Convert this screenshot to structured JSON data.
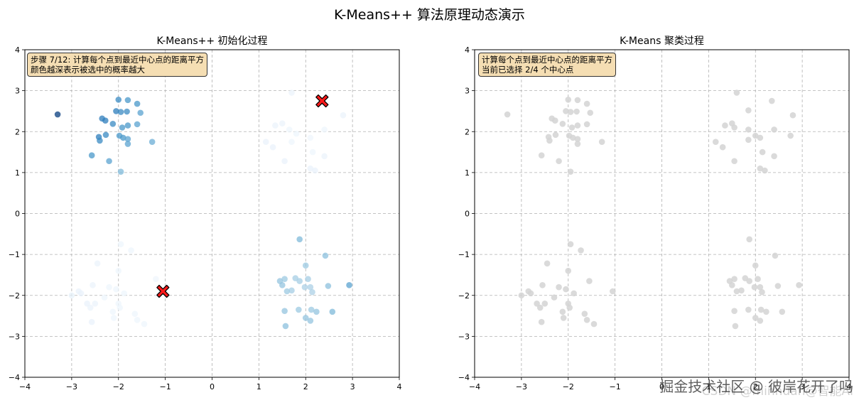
{
  "figure": {
    "suptitle": "K-Means++ 算法原理动态演示",
    "watermark": "掘金技术社区 @ 彼岸花开了吗",
    "watermark_faint": "CSDN @minhuan@智能AI"
  },
  "chart_data": [
    {
      "type": "scatter",
      "title": "K-Means++ 初始化过程",
      "xlim": [
        -4,
        4
      ],
      "ylim": [
        -4,
        4
      ],
      "xticks": [
        "−4",
        "−3",
        "−2",
        "−1",
        "0",
        "1",
        "2",
        "3",
        "4"
      ],
      "yticks": [
        "−4",
        "−3",
        "−2",
        "−1",
        "0",
        "1",
        "2",
        "3",
        "4"
      ],
      "grid": true,
      "annotation": [
        "步骤 7/12: 计算每个点到最近中心点的距离平方",
        "颜色越深表示被选中的概率越大"
      ],
      "points": [
        {
          "x": -3.3,
          "y": 2.42,
          "w": 0.95
        },
        {
          "x": -2.0,
          "y": 2.78,
          "w": 0.65
        },
        {
          "x": -1.8,
          "y": 2.77,
          "w": 0.6
        },
        {
          "x": -1.6,
          "y": 2.68,
          "w": 0.6
        },
        {
          "x": -2.35,
          "y": 2.32,
          "w": 0.7
        },
        {
          "x": -2.28,
          "y": 2.27,
          "w": 0.7
        },
        {
          "x": -2.05,
          "y": 2.5,
          "w": 0.7
        },
        {
          "x": -1.95,
          "y": 2.48,
          "w": 0.65
        },
        {
          "x": -1.82,
          "y": 2.49,
          "w": 0.65
        },
        {
          "x": -1.53,
          "y": 2.46,
          "w": 0.55
        },
        {
          "x": -2.12,
          "y": 2.19,
          "w": 0.65
        },
        {
          "x": -1.92,
          "y": 2.1,
          "w": 0.6
        },
        {
          "x": -1.8,
          "y": 2.15,
          "w": 0.6
        },
        {
          "x": -1.6,
          "y": 2.18,
          "w": 0.55
        },
        {
          "x": -2.42,
          "y": 1.87,
          "w": 0.7
        },
        {
          "x": -2.27,
          "y": 1.92,
          "w": 0.65
        },
        {
          "x": -2.4,
          "y": 1.78,
          "w": 0.65
        },
        {
          "x": -1.98,
          "y": 1.9,
          "w": 0.6
        },
        {
          "x": -1.9,
          "y": 1.85,
          "w": 0.6
        },
        {
          "x": -1.8,
          "y": 1.82,
          "w": 0.55
        },
        {
          "x": -1.8,
          "y": 1.7,
          "w": 0.55
        },
        {
          "x": -1.28,
          "y": 1.75,
          "w": 0.5
        },
        {
          "x": -2.57,
          "y": 1.42,
          "w": 0.6
        },
        {
          "x": -2.2,
          "y": 1.28,
          "w": 0.55
        },
        {
          "x": -1.95,
          "y": 1.02,
          "w": 0.45
        },
        {
          "x": 2.35,
          "y": 2.75,
          "w": 0.0
        },
        {
          "x": 2.8,
          "y": 2.4,
          "w": 0.06
        },
        {
          "x": 1.5,
          "y": 2.2,
          "w": 0.06
        },
        {
          "x": 1.35,
          "y": 2.15,
          "w": 0.06
        },
        {
          "x": 1.65,
          "y": 2.05,
          "w": 0.05
        },
        {
          "x": 1.8,
          "y": 1.95,
          "w": 0.05
        },
        {
          "x": 2.1,
          "y": 1.85,
          "w": 0.04
        },
        {
          "x": 2.4,
          "y": 2.05,
          "w": 0.05
        },
        {
          "x": 1.15,
          "y": 1.75,
          "w": 0.07
        },
        {
          "x": 1.3,
          "y": 1.62,
          "w": 0.07
        },
        {
          "x": 1.7,
          "y": 1.75,
          "w": 0.05
        },
        {
          "x": 2.15,
          "y": 1.5,
          "w": 0.05
        },
        {
          "x": 2.4,
          "y": 1.4,
          "w": 0.06
        },
        {
          "x": 1.55,
          "y": 1.28,
          "w": 0.07
        },
        {
          "x": 2.1,
          "y": 1.1,
          "w": 0.07
        },
        {
          "x": 2.2,
          "y": 1.05,
          "w": 0.07
        },
        {
          "x": 1.7,
          "y": 2.95,
          "w": 0.06
        },
        {
          "x": 1.87,
          "y": -0.63,
          "w": 0.45
        },
        {
          "x": 2.42,
          "y": -1.03,
          "w": 0.42
        },
        {
          "x": 2.0,
          "y": -1.27,
          "w": 0.38
        },
        {
          "x": 1.45,
          "y": -1.65,
          "w": 0.4
        },
        {
          "x": 1.55,
          "y": -1.6,
          "w": 0.38
        },
        {
          "x": 1.5,
          "y": -1.75,
          "w": 0.4
        },
        {
          "x": 1.78,
          "y": -1.58,
          "w": 0.35
        },
        {
          "x": 1.87,
          "y": -1.65,
          "w": 0.35
        },
        {
          "x": 2.05,
          "y": -1.6,
          "w": 0.35
        },
        {
          "x": 2.48,
          "y": -1.77,
          "w": 0.42
        },
        {
          "x": 2.93,
          "y": -1.75,
          "w": 0.55
        },
        {
          "x": 1.6,
          "y": -1.9,
          "w": 0.38
        },
        {
          "x": 1.7,
          "y": -1.88,
          "w": 0.35
        },
        {
          "x": 1.98,
          "y": -1.8,
          "w": 0.33
        },
        {
          "x": 2.1,
          "y": -1.8,
          "w": 0.33
        },
        {
          "x": 2.14,
          "y": -1.92,
          "w": 0.33
        },
        {
          "x": 1.55,
          "y": -2.38,
          "w": 0.4
        },
        {
          "x": 1.85,
          "y": -2.35,
          "w": 0.38
        },
        {
          "x": 2.12,
          "y": -2.35,
          "w": 0.38
        },
        {
          "x": 2.23,
          "y": -2.4,
          "w": 0.4
        },
        {
          "x": 2.57,
          "y": -2.4,
          "w": 0.45
        },
        {
          "x": 2.0,
          "y": -2.55,
          "w": 0.4
        },
        {
          "x": 2.1,
          "y": -2.62,
          "w": 0.4
        },
        {
          "x": 1.57,
          "y": -2.75,
          "w": 0.42
        },
        {
          "x": -1.95,
          "y": -0.75,
          "w": 0.05
        },
        {
          "x": -1.73,
          "y": -0.9,
          "w": 0.05
        },
        {
          "x": -2.45,
          "y": -1.22,
          "w": 0.06
        },
        {
          "x": -2.0,
          "y": -1.4,
          "w": 0.05
        },
        {
          "x": -1.2,
          "y": -1.6,
          "w": 0.04
        },
        {
          "x": -2.55,
          "y": -1.75,
          "w": 0.06
        },
        {
          "x": -2.05,
          "y": -1.85,
          "w": 0.05
        },
        {
          "x": -1.88,
          "y": -1.95,
          "w": 0.05
        },
        {
          "x": -2.2,
          "y": -1.8,
          "w": 0.05
        },
        {
          "x": -2.85,
          "y": -1.9,
          "w": 0.07
        },
        {
          "x": -2.8,
          "y": -1.95,
          "w": 0.07
        },
        {
          "x": -3.0,
          "y": -2.0,
          "w": 0.08
        },
        {
          "x": -2.67,
          "y": -2.2,
          "w": 0.07
        },
        {
          "x": -2.5,
          "y": -2.2,
          "w": 0.06
        },
        {
          "x": -2.3,
          "y": -2.05,
          "w": 0.05
        },
        {
          "x": -2.0,
          "y": -2.2,
          "w": 0.05
        },
        {
          "x": -1.97,
          "y": -2.3,
          "w": 0.05
        },
        {
          "x": -2.6,
          "y": -2.3,
          "w": 0.06
        },
        {
          "x": -2.12,
          "y": -2.4,
          "w": 0.05
        },
        {
          "x": -1.65,
          "y": -2.45,
          "w": 0.05
        },
        {
          "x": -1.6,
          "y": -2.6,
          "w": 0.05
        },
        {
          "x": -2.1,
          "y": -2.55,
          "w": 0.05
        },
        {
          "x": -2.57,
          "y": -2.65,
          "w": 0.07
        },
        {
          "x": -1.45,
          "y": -2.7,
          "w": 0.05
        },
        {
          "x": -1.05,
          "y": -1.9,
          "w": 0.0
        },
        {
          "x": -1.15,
          "y": -2.0,
          "w": 0.03
        }
      ],
      "centers": [
        {
          "x": 2.35,
          "y": 2.75
        },
        {
          "x": -1.05,
          "y": -1.9
        }
      ]
    },
    {
      "type": "scatter",
      "title": "K-Means 聚类过程",
      "xlim": [
        -4,
        4
      ],
      "ylim": [
        -4,
        4
      ],
      "xticks": [
        "−4",
        "−3",
        "−2",
        "−1",
        "0",
        "1",
        "2",
        "3",
        "4"
      ],
      "yticks": [
        "−4",
        "−3",
        "−2",
        "−1",
        "0",
        "1",
        "2",
        "3",
        "4"
      ],
      "grid": true,
      "annotation": [
        "计算每个点到最近中心点的距离平方",
        "当前已选择 2/4 个中心点"
      ],
      "point_color": "#d3d3d3",
      "points": [
        {
          "x": -3.3,
          "y": 2.42
        },
        {
          "x": -2.0,
          "y": 2.78
        },
        {
          "x": -1.8,
          "y": 2.77
        },
        {
          "x": -1.6,
          "y": 2.68
        },
        {
          "x": -2.35,
          "y": 2.32
        },
        {
          "x": -2.28,
          "y": 2.27
        },
        {
          "x": -2.05,
          "y": 2.5
        },
        {
          "x": -1.95,
          "y": 2.48
        },
        {
          "x": -1.82,
          "y": 2.49
        },
        {
          "x": -1.53,
          "y": 2.46
        },
        {
          "x": -2.12,
          "y": 2.19
        },
        {
          "x": -1.92,
          "y": 2.1
        },
        {
          "x": -1.8,
          "y": 2.15
        },
        {
          "x": -1.6,
          "y": 2.18
        },
        {
          "x": -2.42,
          "y": 1.87
        },
        {
          "x": -2.27,
          "y": 1.92
        },
        {
          "x": -2.4,
          "y": 1.78
        },
        {
          "x": -1.98,
          "y": 1.9
        },
        {
          "x": -1.9,
          "y": 1.85
        },
        {
          "x": -1.8,
          "y": 1.82
        },
        {
          "x": -1.8,
          "y": 1.7
        },
        {
          "x": -1.28,
          "y": 1.75
        },
        {
          "x": -2.57,
          "y": 1.42
        },
        {
          "x": -2.2,
          "y": 1.28
        },
        {
          "x": -1.95,
          "y": 1.02
        },
        {
          "x": 1.6,
          "y": 2.95
        },
        {
          "x": 2.35,
          "y": 2.75
        },
        {
          "x": 1.85,
          "y": 2.52
        },
        {
          "x": 2.8,
          "y": 2.4
        },
        {
          "x": 1.5,
          "y": 2.2
        },
        {
          "x": 1.35,
          "y": 2.15
        },
        {
          "x": 1.85,
          "y": 2.05
        },
        {
          "x": 2.1,
          "y": 1.85
        },
        {
          "x": 2.4,
          "y": 2.05
        },
        {
          "x": 1.15,
          "y": 1.75
        },
        {
          "x": 1.3,
          "y": 1.62
        },
        {
          "x": 1.85,
          "y": 1.8
        },
        {
          "x": 2.0,
          "y": 1.9
        },
        {
          "x": 2.75,
          "y": 1.9
        },
        {
          "x": 2.15,
          "y": 1.5
        },
        {
          "x": 2.4,
          "y": 1.4
        },
        {
          "x": 1.55,
          "y": 1.28
        },
        {
          "x": 2.1,
          "y": 1.1
        },
        {
          "x": 2.2,
          "y": 1.05
        },
        {
          "x": 1.55,
          "y": 2.1
        },
        {
          "x": 1.87,
          "y": -0.63
        },
        {
          "x": 2.42,
          "y": -1.03
        },
        {
          "x": 2.0,
          "y": -1.27
        },
        {
          "x": 1.45,
          "y": -1.65
        },
        {
          "x": 1.55,
          "y": -1.6
        },
        {
          "x": 1.5,
          "y": -1.75
        },
        {
          "x": 1.78,
          "y": -1.58
        },
        {
          "x": 1.87,
          "y": -1.65
        },
        {
          "x": 2.05,
          "y": -1.6
        },
        {
          "x": 2.48,
          "y": -1.77
        },
        {
          "x": 2.93,
          "y": -1.75
        },
        {
          "x": 1.6,
          "y": -1.9
        },
        {
          "x": 1.7,
          "y": -1.88
        },
        {
          "x": 1.98,
          "y": -1.8
        },
        {
          "x": 2.1,
          "y": -1.8
        },
        {
          "x": 2.14,
          "y": -1.92
        },
        {
          "x": 1.55,
          "y": -2.38
        },
        {
          "x": 1.85,
          "y": -2.35
        },
        {
          "x": 2.12,
          "y": -2.35
        },
        {
          "x": 2.23,
          "y": -2.4
        },
        {
          "x": 2.57,
          "y": -2.4
        },
        {
          "x": 2.0,
          "y": -2.55
        },
        {
          "x": 2.1,
          "y": -2.62
        },
        {
          "x": 1.57,
          "y": -2.75
        },
        {
          "x": -1.95,
          "y": -0.75
        },
        {
          "x": -1.73,
          "y": -0.9
        },
        {
          "x": -2.45,
          "y": -1.22
        },
        {
          "x": -2.0,
          "y": -1.4
        },
        {
          "x": -2.55,
          "y": -1.75
        },
        {
          "x": -2.05,
          "y": -1.85
        },
        {
          "x": -1.88,
          "y": -1.95
        },
        {
          "x": -2.2,
          "y": -1.8
        },
        {
          "x": -2.85,
          "y": -1.9
        },
        {
          "x": -2.8,
          "y": -1.95
        },
        {
          "x": -3.0,
          "y": -2.0
        },
        {
          "x": -2.67,
          "y": -2.2
        },
        {
          "x": -2.5,
          "y": -2.2
        },
        {
          "x": -2.3,
          "y": -2.05
        },
        {
          "x": -2.0,
          "y": -2.2
        },
        {
          "x": -1.97,
          "y": -2.3
        },
        {
          "x": -2.6,
          "y": -2.3
        },
        {
          "x": -2.12,
          "y": -2.4
        },
        {
          "x": -1.65,
          "y": -2.45
        },
        {
          "x": -1.6,
          "y": -2.6
        },
        {
          "x": -2.1,
          "y": -2.55
        },
        {
          "x": -2.57,
          "y": -2.65
        },
        {
          "x": -1.45,
          "y": -2.7
        },
        {
          "x": -1.05,
          "y": -1.9
        },
        {
          "x": -1.55,
          "y": -1.65
        }
      ],
      "centers": []
    }
  ]
}
